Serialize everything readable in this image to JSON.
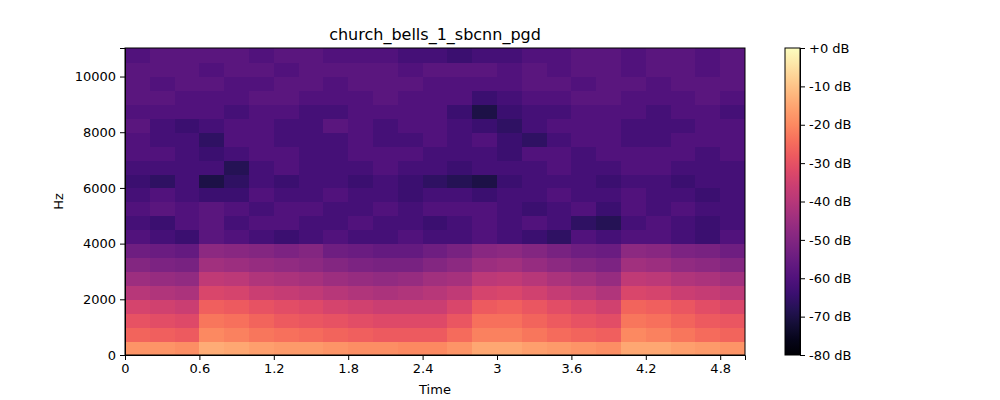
{
  "chart_data": {
    "type": "heatmap",
    "title": "church_bells_1_sbcnn_pgd",
    "x_label": "Time",
    "y_label": "Hz",
    "xlim": [
      0,
      5.0
    ],
    "xticks": [
      0,
      0.6,
      1.2,
      1.8,
      2.4,
      3,
      3.6,
      4.2,
      4.8
    ],
    "ylim": [
      0,
      11025
    ],
    "yticks": [
      0,
      2000,
      4000,
      6000,
      8000,
      10000
    ],
    "time_bins": [
      0,
      0.2,
      0.4,
      0.6,
      0.8,
      1.0,
      1.2,
      1.4,
      1.6,
      1.8,
      2.0,
      2.2,
      2.4,
      2.6,
      2.8,
      3.0,
      3.2,
      3.4,
      3.6,
      3.8,
      4.0,
      4.2,
      4.4,
      4.6,
      4.8,
      5.0
    ],
    "freq_bins": [
      0,
      500,
      1000,
      1500,
      2000,
      2500,
      3000,
      3500,
      4000,
      4500,
      5000,
      5500,
      6000,
      6500,
      7000,
      7500,
      8000,
      8500,
      9000,
      9500,
      10000,
      10500,
      11025
    ],
    "cells": [
      [
        -18,
        -18,
        -19,
        -14,
        -15,
        -16,
        -17,
        -17,
        -18,
        -19,
        -19,
        -20,
        -20,
        -18,
        -15,
        -15,
        -16,
        -17,
        -18,
        -19,
        -15,
        -15,
        -16,
        -17,
        -18
      ],
      [
        -26,
        -27,
        -28,
        -20,
        -21,
        -23,
        -24,
        -25,
        -26,
        -27,
        -28,
        -28,
        -28,
        -25,
        -21,
        -21,
        -23,
        -25,
        -26,
        -27,
        -20,
        -21,
        -23,
        -25,
        -26
      ],
      [
        -30,
        -31,
        -32,
        -23,
        -24,
        -26,
        -28,
        -29,
        -30,
        -31,
        -32,
        -32,
        -32,
        -29,
        -24,
        -24,
        -26,
        -28,
        -30,
        -31,
        -23,
        -24,
        -26,
        -28,
        -29
      ],
      [
        -34,
        -35,
        -36,
        -27,
        -28,
        -30,
        -31,
        -32,
        -34,
        -35,
        -36,
        -36,
        -36,
        -33,
        -28,
        -27,
        -29,
        -31,
        -33,
        -35,
        -26,
        -27,
        -29,
        -31,
        -33
      ],
      [
        -40,
        -41,
        -42,
        -33,
        -34,
        -36,
        -37,
        -38,
        -40,
        -41,
        -42,
        -41,
        -40,
        -38,
        -34,
        -33,
        -35,
        -37,
        -39,
        -41,
        -33,
        -34,
        -36,
        -37,
        -39
      ],
      [
        -45,
        -46,
        -47,
        -38,
        -39,
        -41,
        -42,
        -43,
        -45,
        -46,
        -47,
        -46,
        -44,
        -43,
        -39,
        -38,
        -40,
        -42,
        -44,
        -46,
        -38,
        -39,
        -41,
        -42,
        -44
      ],
      [
        -50,
        -51,
        -52,
        -44,
        -45,
        -46,
        -47,
        -48,
        -50,
        -51,
        -52,
        -52,
        -50,
        -48,
        -45,
        -44,
        -46,
        -48,
        -50,
        -51,
        -44,
        -45,
        -47,
        -48,
        -50
      ],
      [
        -54,
        -55,
        -56,
        -48,
        -49,
        -50,
        -51,
        -50,
        -54,
        -55,
        -56,
        -56,
        -54,
        -52,
        -49,
        -48,
        -50,
        -52,
        -54,
        -55,
        -48,
        -49,
        -51,
        -52,
        -54
      ],
      [
        -60,
        -62,
        -64,
        -58,
        -60,
        -62,
        -64,
        -62,
        -60,
        -62,
        -62,
        -60,
        -62,
        -62,
        -60,
        -62,
        -64,
        -66,
        -60,
        -62,
        -60,
        -60,
        -62,
        -64,
        -60
      ],
      [
        -62,
        -64,
        -60,
        -58,
        -62,
        -60,
        -60,
        -62,
        -62,
        -60,
        -62,
        -62,
        -64,
        -62,
        -60,
        -62,
        -60,
        -62,
        -66,
        -68,
        -62,
        -60,
        -62,
        -64,
        -62
      ],
      [
        -60,
        -58,
        -60,
        -58,
        -60,
        -62,
        -60,
        -60,
        -62,
        -62,
        -60,
        -62,
        -60,
        -60,
        -60,
        -62,
        -64,
        -62,
        -60,
        -64,
        -60,
        -62,
        -60,
        -62,
        -62
      ],
      [
        -62,
        -60,
        -62,
        -64,
        -64,
        -60,
        -62,
        -62,
        -60,
        -62,
        -62,
        -64,
        -62,
        -62,
        -64,
        -62,
        -62,
        -60,
        -62,
        -62,
        -60,
        -62,
        -62,
        -64,
        -62
      ],
      [
        -64,
        -66,
        -62,
        -70,
        -66,
        -62,
        -64,
        -62,
        -62,
        -64,
        -62,
        -64,
        -66,
        -68,
        -70,
        -64,
        -62,
        -62,
        -62,
        -64,
        -62,
        -62,
        -64,
        -62,
        -62
      ],
      [
        -62,
        -62,
        -62,
        -62,
        -68,
        -62,
        -60,
        -62,
        -62,
        -62,
        -60,
        -62,
        -62,
        -64,
        -62,
        -62,
        -62,
        -60,
        -62,
        -62,
        -60,
        -60,
        -62,
        -62,
        -62
      ],
      [
        -60,
        -60,
        -62,
        -64,
        -62,
        -60,
        -60,
        -62,
        -62,
        -60,
        -60,
        -60,
        -62,
        -62,
        -62,
        -64,
        -60,
        -60,
        -62,
        -60,
        -60,
        -60,
        -60,
        -62,
        -60
      ],
      [
        -60,
        -62,
        -62,
        -66,
        -60,
        -60,
        -62,
        -62,
        -62,
        -60,
        -62,
        -62,
        -60,
        -62,
        -60,
        -64,
        -66,
        -62,
        -60,
        -60,
        -62,
        -62,
        -60,
        -60,
        -60
      ],
      [
        -58,
        -62,
        -64,
        -62,
        -60,
        -60,
        -62,
        -62,
        -58,
        -60,
        -62,
        -60,
        -60,
        -62,
        -64,
        -66,
        -62,
        -60,
        -60,
        -60,
        -62,
        -62,
        -62,
        -60,
        -60
      ],
      [
        -60,
        -60,
        -60,
        -60,
        -62,
        -60,
        -60,
        -62,
        -62,
        -60,
        -60,
        -60,
        -60,
        -64,
        -70,
        -64,
        -62,
        -62,
        -60,
        -60,
        -60,
        -62,
        -60,
        -60,
        -62
      ],
      [
        -58,
        -58,
        -60,
        -60,
        -60,
        -58,
        -58,
        -60,
        -60,
        -60,
        -58,
        -60,
        -60,
        -60,
        -64,
        -62,
        -60,
        -60,
        -58,
        -58,
        -60,
        -60,
        -60,
        -58,
        -60
      ],
      [
        -58,
        -60,
        -58,
        -58,
        -60,
        -60,
        -58,
        -58,
        -60,
        -58,
        -58,
        -58,
        -60,
        -60,
        -60,
        -60,
        -58,
        -58,
        -60,
        -58,
        -58,
        -60,
        -58,
        -58,
        -58
      ],
      [
        -58,
        -58,
        -58,
        -60,
        -58,
        -58,
        -60,
        -58,
        -58,
        -58,
        -58,
        -60,
        -58,
        -58,
        -58,
        -60,
        -58,
        -60,
        -58,
        -58,
        -60,
        -58,
        -58,
        -60,
        -58
      ],
      [
        -60,
        -58,
        -58,
        -58,
        -58,
        -60,
        -58,
        -58,
        -60,
        -60,
        -60,
        -62,
        -62,
        -64,
        -62,
        -62,
        -60,
        -60,
        -58,
        -58,
        -60,
        -58,
        -58,
        -60,
        -58
      ]
    ],
    "colorbar": {
      "range": [
        -80,
        0
      ],
      "ticks": [
        {
          "value": 0,
          "label": "+0 dB"
        },
        {
          "value": -10,
          "label": "-10 dB"
        },
        {
          "value": -20,
          "label": "-20 dB"
        },
        {
          "value": -30,
          "label": "-30 dB"
        },
        {
          "value": -40,
          "label": "-40 dB"
        },
        {
          "value": -50,
          "label": "-50 dB"
        },
        {
          "value": -60,
          "label": "-60 dB"
        },
        {
          "value": -70,
          "label": "-70 dB"
        },
        {
          "value": -80,
          "label": "-80 dB"
        }
      ]
    }
  }
}
